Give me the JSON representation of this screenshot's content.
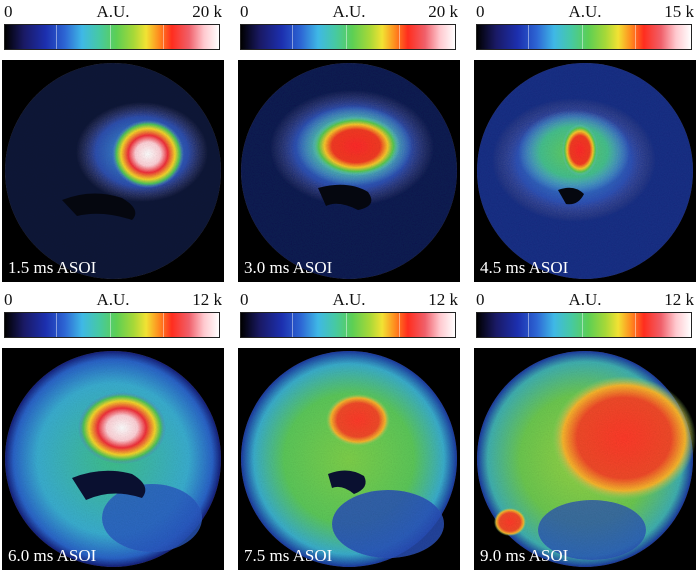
{
  "panels": [
    {
      "time_label": "1.5 ms ASOI",
      "scale": {
        "min": "0",
        "unit": "A.U.",
        "max": "20 k"
      }
    },
    {
      "time_label": "3.0 ms ASOI",
      "scale": {
        "min": "0",
        "unit": "A.U.",
        "max": "20 k"
      }
    },
    {
      "time_label": "4.5 ms ASOI",
      "scale": {
        "min": "0",
        "unit": "A.U.",
        "max": "15 k"
      }
    },
    {
      "time_label": "6.0 ms ASOI",
      "scale": {
        "min": "0",
        "unit": "A.U.",
        "max": "12 k"
      }
    },
    {
      "time_label": "7.5 ms ASOI",
      "scale": {
        "min": "0",
        "unit": "A.U.",
        "max": "12 k"
      }
    },
    {
      "time_label": "9.0 ms ASOI",
      "scale": {
        "min": "0",
        "unit": "A.U.",
        "max": "12 k"
      }
    }
  ]
}
